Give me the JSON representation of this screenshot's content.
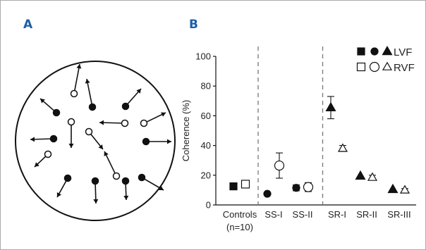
{
  "panels": {
    "a_label": "A",
    "b_label": "B"
  },
  "chart_data": {
    "type": "scatter",
    "title": "",
    "xlabel": "",
    "ylabel": "Coherence (%)",
    "ylim": [
      0,
      100
    ],
    "yticks": [
      0,
      20,
      40,
      60,
      80,
      100
    ],
    "categories": [
      {
        "label": "Controls",
        "sublabel": "(n=10)"
      },
      {
        "label": "SS-I"
      },
      {
        "label": "SS-II"
      },
      {
        "label": "SR-I"
      },
      {
        "label": "SR-II"
      },
      {
        "label": "SR-III"
      }
    ],
    "group_dividers_after": [
      "Controls",
      "SS-II"
    ],
    "series": [
      {
        "name": "LVF",
        "fill": "filled",
        "category_markers": [
          "square",
          "circle",
          "circle",
          "triangle",
          "triangle",
          "triangle"
        ],
        "values": [
          12.5,
          7.5,
          11.5,
          65.5,
          19.5,
          10.5
        ],
        "errors": [
          0,
          0,
          2,
          7.5,
          0,
          0
        ]
      },
      {
        "name": "RVF",
        "fill": "open",
        "category_markers": [
          "square",
          "circle",
          "circle",
          "triangle",
          "triangle",
          "triangle"
        ],
        "values": [
          14,
          26.5,
          12,
          38,
          18.5,
          10
        ],
        "errors": [
          2,
          8.5,
          3,
          2,
          1.5,
          1
        ]
      }
    ],
    "legend": {
      "position": "top-right",
      "rows": [
        "LVF",
        "RVF"
      ]
    },
    "grid": false
  },
  "colors": {
    "ink": "#111111",
    "panel_label": "#1a5fa6",
    "divider": "#777777",
    "frame": "#aaaaaa"
  }
}
